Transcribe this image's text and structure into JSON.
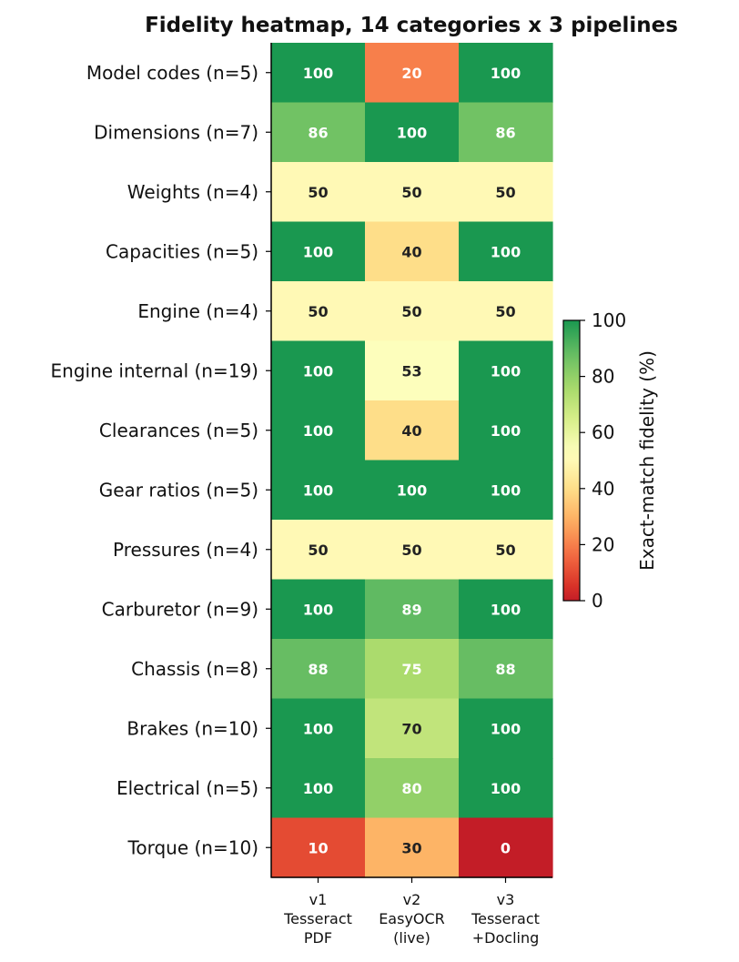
{
  "chart_data": {
    "type": "heatmap",
    "title": "Fidelity heatmap, 14 categories x 3 pipelines",
    "rows": [
      "Model codes  (n=5)",
      "Dimensions  (n=7)",
      "Weights  (n=4)",
      "Capacities  (n=5)",
      "Engine  (n=4)",
      "Engine internal  (n=19)",
      "Clearances  (n=5)",
      "Gear ratios  (n=5)",
      "Pressures  (n=4)",
      "Carburetor  (n=9)",
      "Chassis  (n=8)",
      "Brakes  (n=10)",
      "Electrical  (n=5)",
      "Torque  (n=10)"
    ],
    "columns": [
      [
        "v1",
        "Tesseract",
        "PDF"
      ],
      [
        "v2",
        "EasyOCR",
        "(live)"
      ],
      [
        "v3",
        "Tesseract",
        "+Docling"
      ]
    ],
    "values": [
      [
        100,
        20,
        100
      ],
      [
        86,
        100,
        86
      ],
      [
        50,
        50,
        50
      ],
      [
        100,
        40,
        100
      ],
      [
        50,
        50,
        50
      ],
      [
        100,
        53,
        100
      ],
      [
        100,
        40,
        100
      ],
      [
        100,
        100,
        100
      ],
      [
        50,
        50,
        50
      ],
      [
        100,
        89,
        100
      ],
      [
        88,
        75,
        88
      ],
      [
        100,
        70,
        100
      ],
      [
        100,
        80,
        100
      ],
      [
        10,
        30,
        0
      ]
    ],
    "colorscale": "RdYlGn",
    "vmin": 0,
    "vmax": 100,
    "colorbar": {
      "label": "Exact-match fidelity (%)",
      "ticks": [
        0,
        20,
        40,
        60,
        80,
        100
      ]
    }
  }
}
